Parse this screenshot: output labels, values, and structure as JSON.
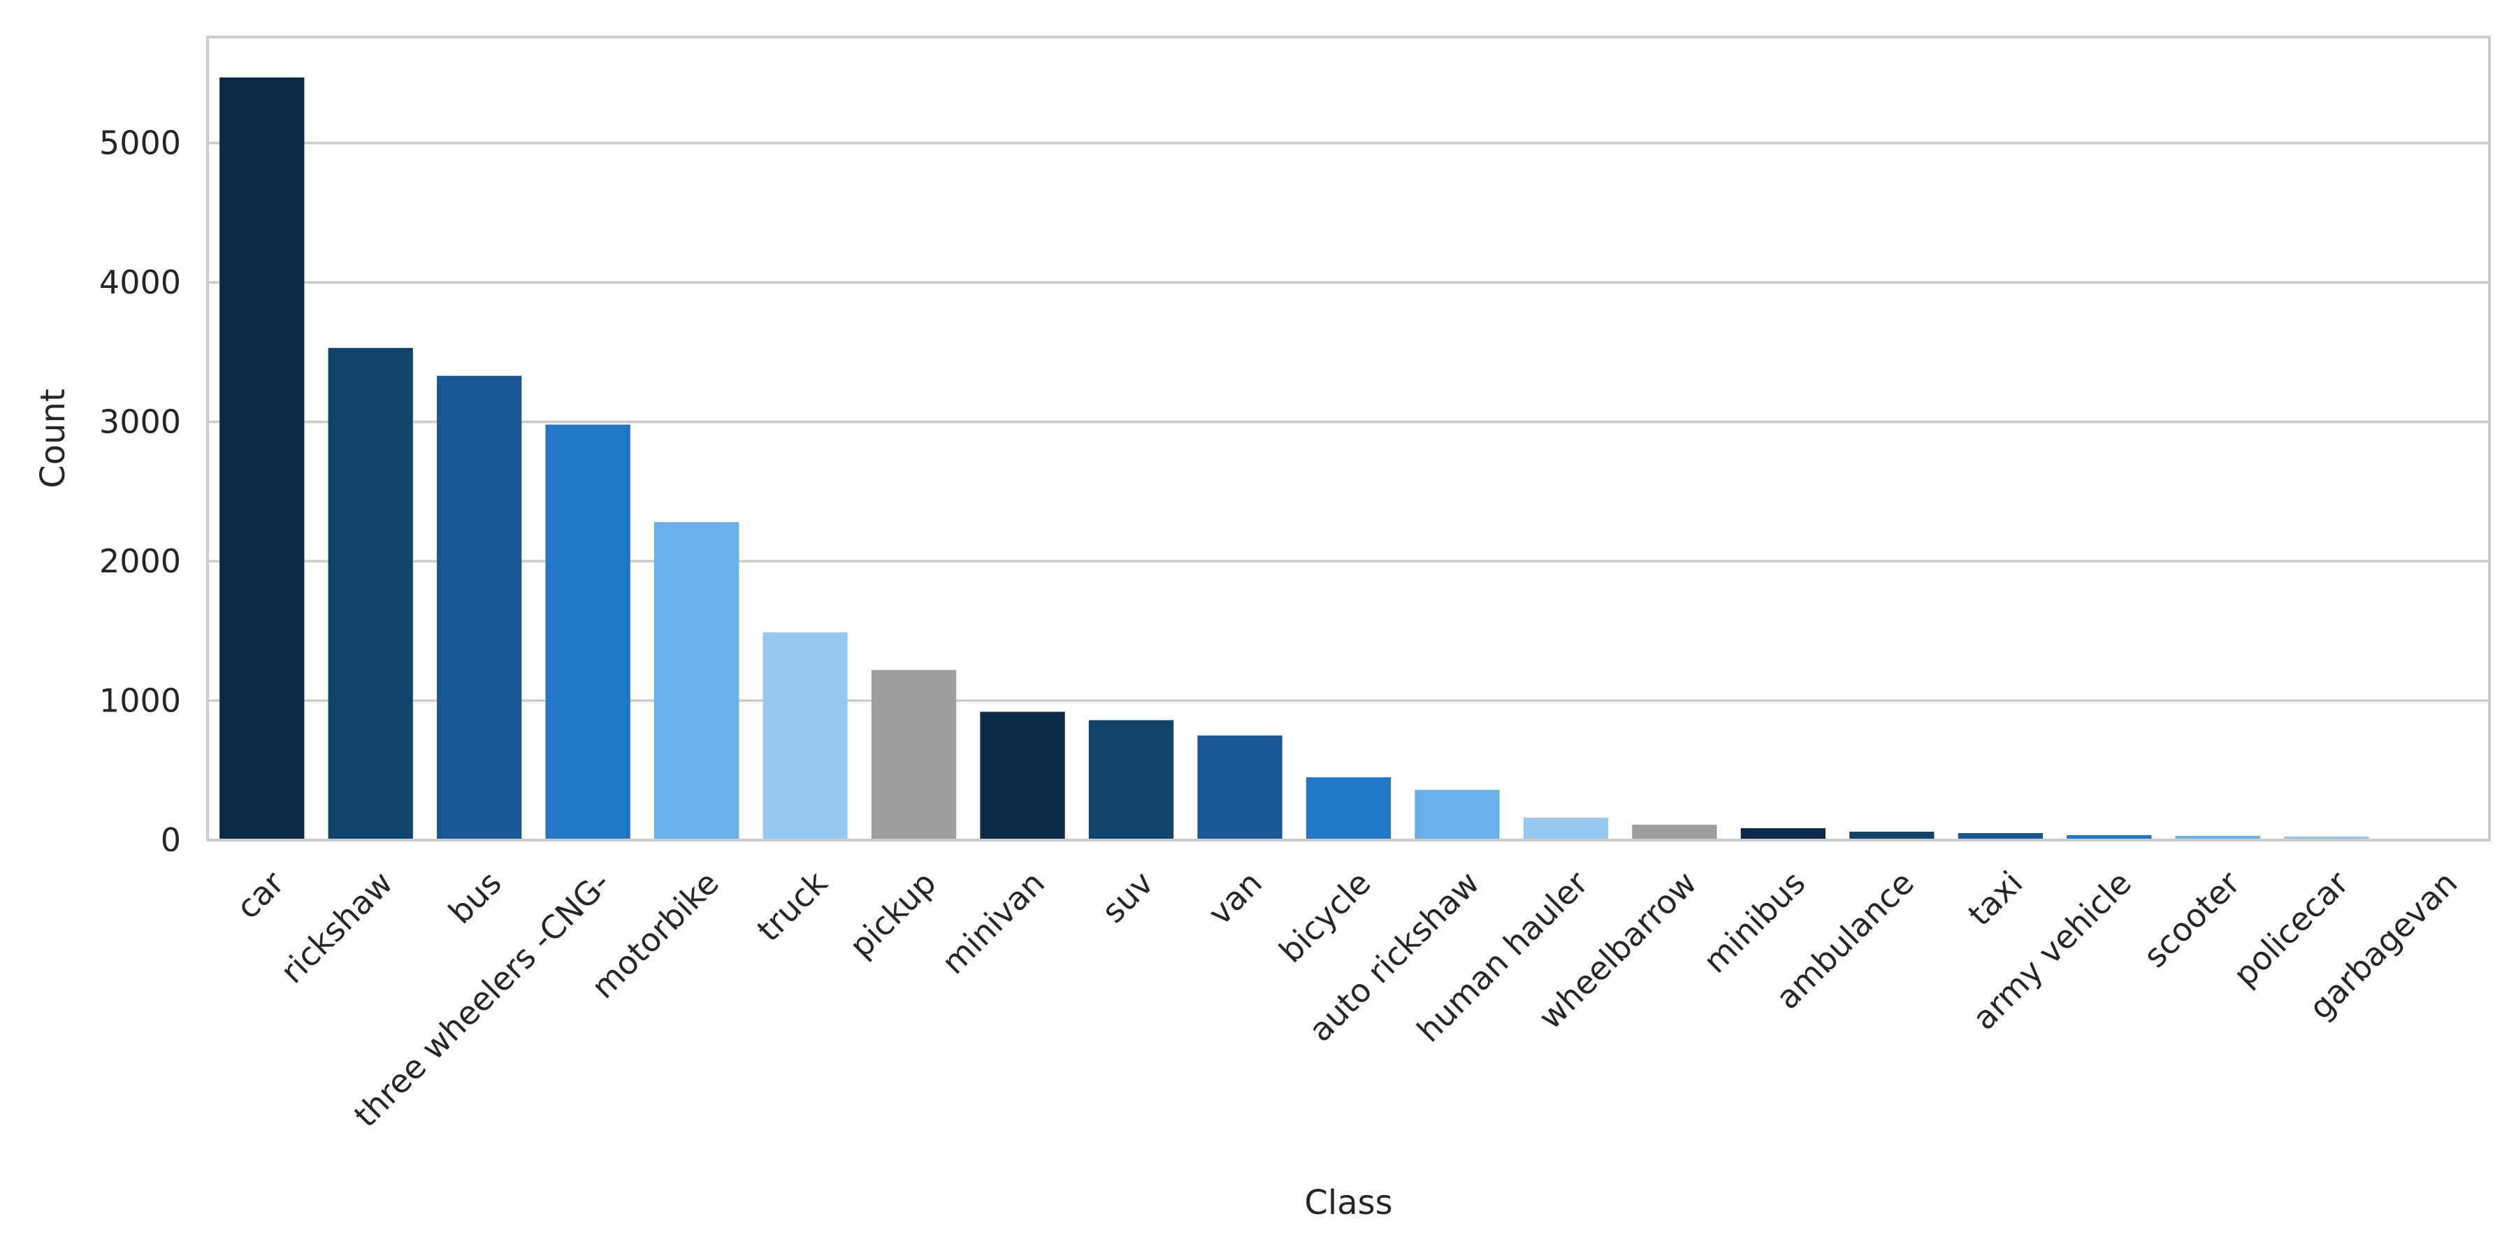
{
  "chart_data": {
    "type": "bar",
    "title": "",
    "xlabel": "Class",
    "ylabel": "Count",
    "ylim": [
      0,
      5760
    ],
    "yticks": [
      0,
      1000,
      2000,
      3000,
      4000,
      5000
    ],
    "grid": "y",
    "categories": [
      "car",
      "rickshaw",
      "bus",
      "three wheelers -CNG-",
      "motorbike",
      "truck",
      "pickup",
      "minivan",
      "suv",
      "van",
      "bicycle",
      "auto rickshaw",
      "human hauler",
      "wheelbarrow",
      "minibus",
      "ambulance",
      "taxi",
      "army vehicle",
      "scooter",
      "policecar",
      "garbagevan"
    ],
    "values": [
      5470,
      3530,
      3330,
      2980,
      2280,
      1490,
      1220,
      920,
      860,
      750,
      450,
      360,
      160,
      110,
      85,
      60,
      50,
      35,
      30,
      25,
      5
    ],
    "colors": [
      "#0c2a48",
      "#10426a",
      "#1a5694",
      "#2176c8",
      "#69b0e8",
      "#96c8f0",
      "#9d9d9d",
      "#0c2a48",
      "#10426a",
      "#1a5694",
      "#2176c8",
      "#69b0e8",
      "#96c8f0",
      "#9d9d9d",
      "#0c2a48",
      "#10426a",
      "#1a5694",
      "#2176c8",
      "#69b0e8",
      "#96c8f0",
      "#9d9d9d"
    ],
    "grid_color": "#cccccc",
    "frame_color": "#cccccc",
    "text_color": "#262626"
  }
}
